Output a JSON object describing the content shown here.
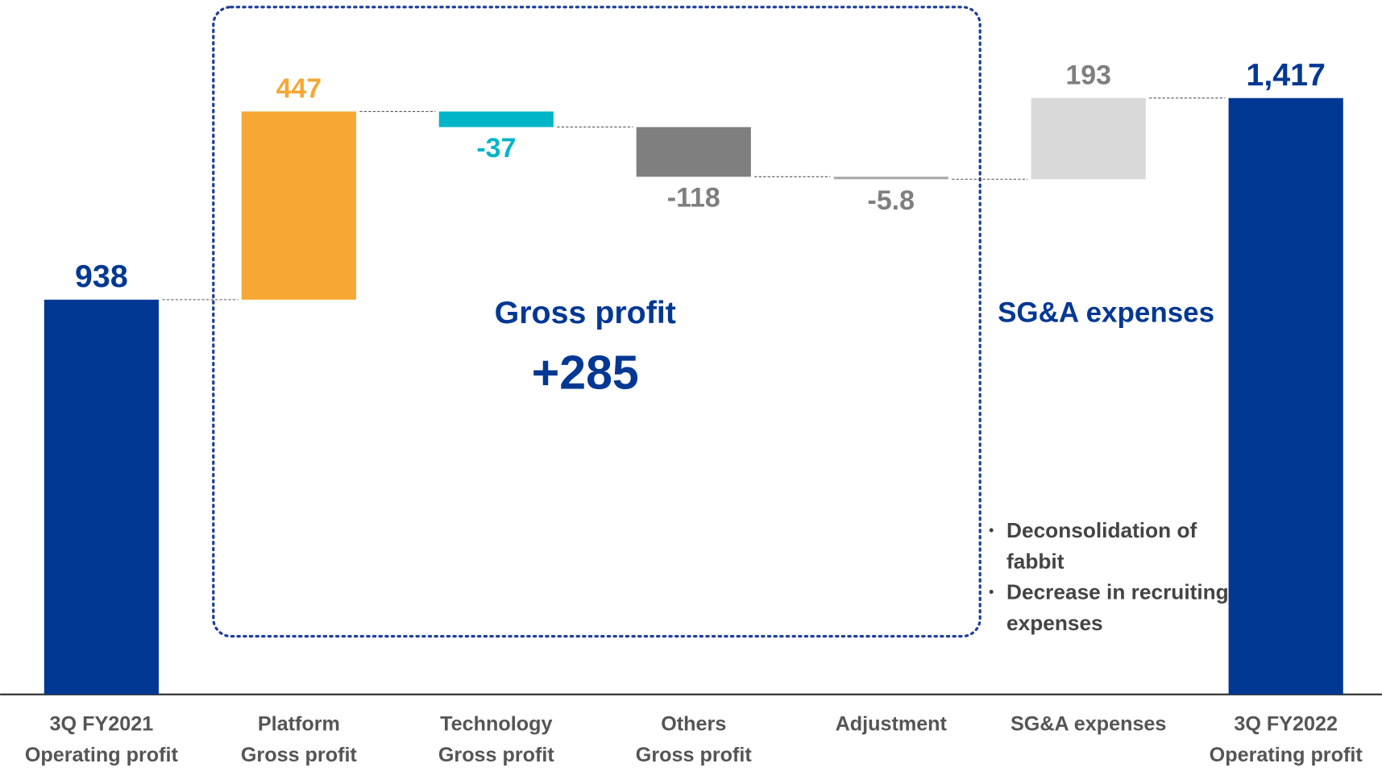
{
  "chart_data": {
    "type": "waterfall",
    "categories": [
      "3Q FY2021\nOperating profit",
      "Platform\nGross profit",
      "Technology\nGross profit",
      "Others\nGross profit",
      "Adjustment",
      "SG&A expenses",
      "3Q FY2022\nOperating profit"
    ],
    "values": [
      938,
      447,
      -37,
      -118,
      -5.8,
      193,
      1417
    ],
    "value_labels": [
      "938",
      "447",
      "-37",
      "-118",
      "-5.8",
      "193",
      "1,417"
    ],
    "is_total": [
      true,
      false,
      false,
      false,
      false,
      false,
      true
    ],
    "colors": [
      "#003893",
      "#f7a733",
      "#00b5c8",
      "#7f7f7f",
      "#a6a6a6",
      "#d9d9d9",
      "#003893"
    ],
    "label_colors": [
      "#003893",
      "#f7a733",
      "#00b5c8",
      "#7f7f7f",
      "#7f7f7f",
      "#7f7f7f",
      "#003893"
    ],
    "ylim": [
      0,
      1650
    ],
    "annotations": {
      "gross_profit": "Gross profit",
      "gross_profit_change": "+285",
      "sga": "SG&A expenses",
      "sga_notes": [
        "Deconsolidation of fabbit",
        "Decrease in recruiting expenses"
      ]
    }
  }
}
